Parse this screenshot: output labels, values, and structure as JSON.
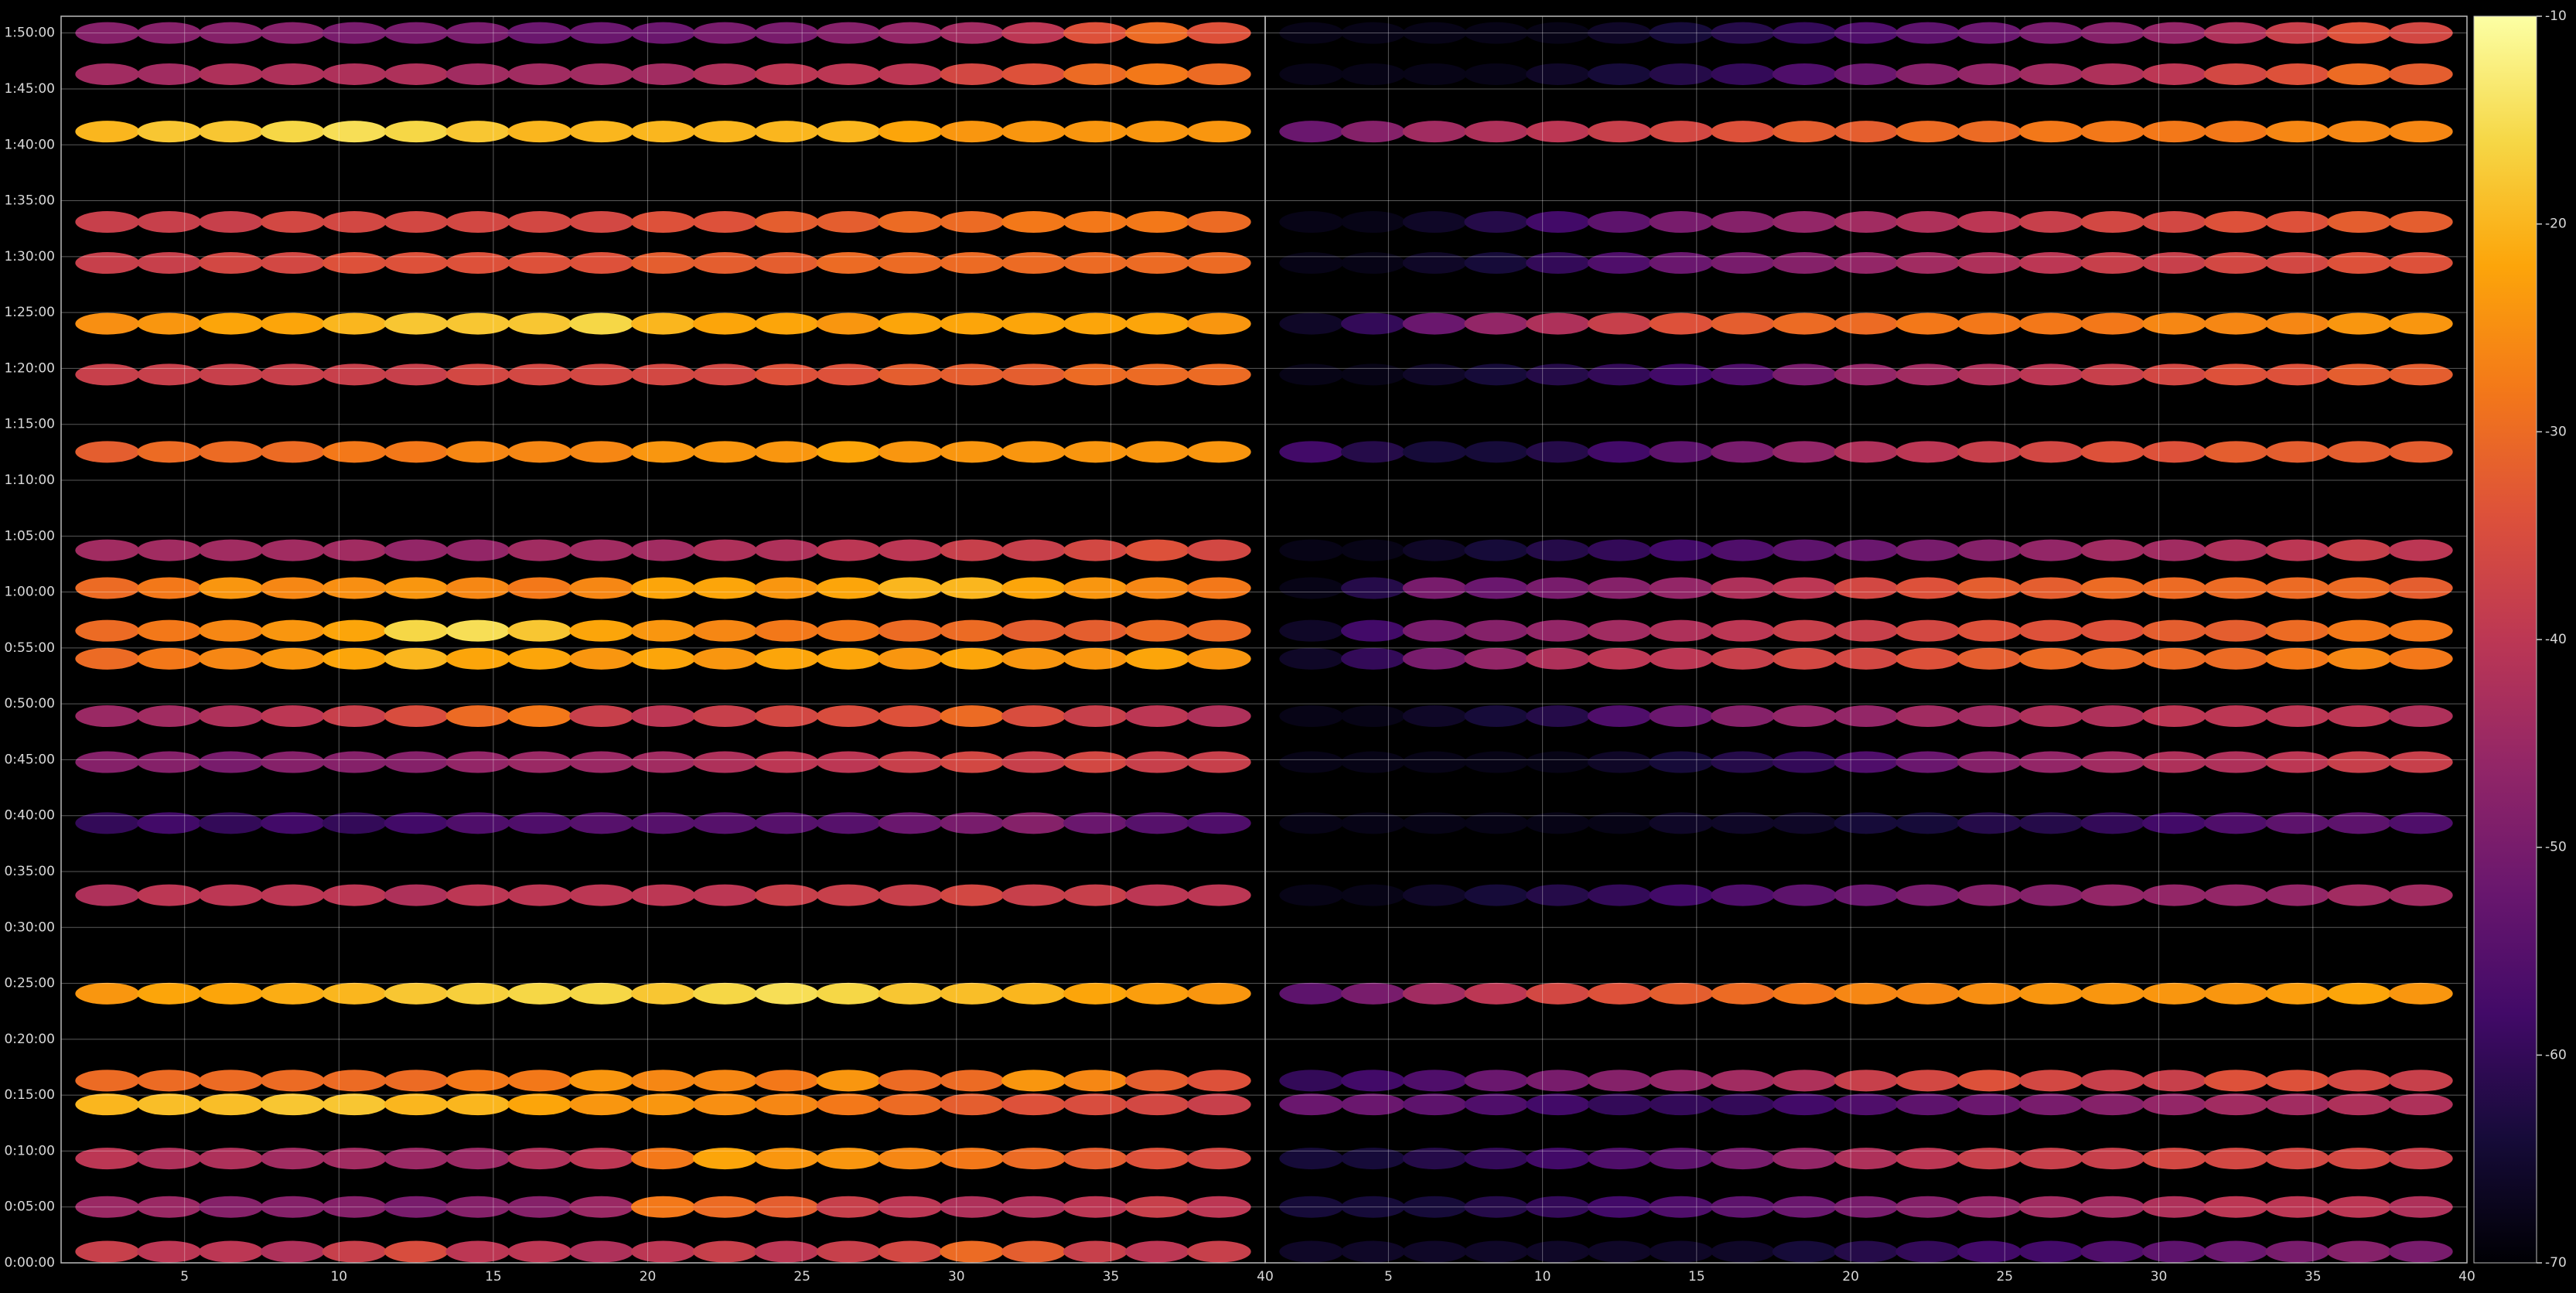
{
  "chart_data": [
    {
      "type": "heatmap",
      "xlim": [
        1,
        40
      ],
      "xticks": [
        5,
        10,
        15,
        20,
        25,
        30,
        35,
        40
      ],
      "ylim": [
        0,
        6690
      ],
      "yticks": [
        {
          "value": 0,
          "label": "0:00:00"
        },
        {
          "value": 300,
          "label": "0:05:00"
        },
        {
          "value": 600,
          "label": "0:10:00"
        },
        {
          "value": 900,
          "label": "0:15:00"
        },
        {
          "value": 1200,
          "label": "0:20:00"
        },
        {
          "value": 1500,
          "label": "0:25:00"
        },
        {
          "value": 1800,
          "label": "0:30:00"
        },
        {
          "value": 2100,
          "label": "0:35:00"
        },
        {
          "value": 2400,
          "label": "0:40:00"
        },
        {
          "value": 2700,
          "label": "0:45:00"
        },
        {
          "value": 3000,
          "label": "0:50:00"
        },
        {
          "value": 3300,
          "label": "0:55:00"
        },
        {
          "value": 3600,
          "label": "1:00:00"
        },
        {
          "value": 3900,
          "label": "1:05:00"
        },
        {
          "value": 4200,
          "label": "1:10:00"
        },
        {
          "value": 4500,
          "label": "1:15:00"
        },
        {
          "value": 4800,
          "label": "1:20:00"
        },
        {
          "value": 5100,
          "label": "1:25:00"
        },
        {
          "value": 5400,
          "label": "1:30:00"
        },
        {
          "value": 5700,
          "label": "1:35:00"
        },
        {
          "value": 6000,
          "label": "1:40:00"
        },
        {
          "value": 6300,
          "label": "1:45:00"
        },
        {
          "value": 6600,
          "label": "1:50:00"
        }
      ],
      "grid": true,
      "x": [
        2.5,
        4.5,
        6.5,
        8.5,
        10.5,
        12.5,
        14.5,
        16.5,
        18.5,
        20.5,
        22.5,
        24.5,
        26.5,
        28.5,
        30.5,
        32.5,
        34.5,
        36.5,
        38.5
      ],
      "y": [
        60,
        300,
        560,
        850,
        978,
        1445,
        1973,
        2360,
        2687,
        2934,
        3242,
        3392,
        3621,
        3824,
        4352,
        4767,
        5040,
        5366,
        5586,
        6071,
        6379,
        6600
      ],
      "z": [
        [
          -38,
          -40,
          -40,
          -42,
          -38,
          -35,
          -40,
          -40,
          -42,
          -40,
          -38,
          -40,
          -38,
          -36,
          -30,
          -32,
          -38,
          -40,
          -38
        ],
        [
          -45,
          -45,
          -48,
          -48,
          -48,
          -50,
          -48,
          -48,
          -45,
          -28,
          -30,
          -32,
          -38,
          -40,
          -42,
          -42,
          -40,
          -38,
          -40
        ],
        [
          -40,
          -42,
          -42,
          -44,
          -44,
          -45,
          -45,
          -42,
          -40,
          -28,
          -22,
          -24,
          -24,
          -26,
          -28,
          -30,
          -32,
          -34,
          -36
        ],
        [
          -20,
          -19,
          -19,
          -18,
          -18,
          -20,
          -20,
          -22,
          -24,
          -24,
          -25,
          -26,
          -28,
          -30,
          -32,
          -34,
          -35,
          -36,
          -38
        ],
        [
          -30,
          -30,
          -30,
          -30,
          -30,
          -30,
          -28,
          -28,
          -24,
          -26,
          -26,
          -28,
          -24,
          -30,
          -30,
          -24,
          -26,
          -32,
          -34
        ],
        [
          -24,
          -22,
          -22,
          -21,
          -20,
          -18,
          -17,
          -16,
          -16,
          -18,
          -16,
          -15,
          -16,
          -18,
          -19,
          -20,
          -22,
          -23,
          -24
        ],
        [
          -42,
          -40,
          -40,
          -40,
          -40,
          -42,
          -40,
          -40,
          -40,
          -40,
          -40,
          -38,
          -38,
          -38,
          -36,
          -38,
          -38,
          -40,
          -40
        ],
        [
          -60,
          -58,
          -60,
          -58,
          -60,
          -58,
          -56,
          -56,
          -55,
          -55,
          -55,
          -55,
          -55,
          -52,
          -50,
          -48,
          -52,
          -55,
          -56
        ],
        [
          -48,
          -48,
          -50,
          -48,
          -48,
          -48,
          -46,
          -45,
          -45,
          -44,
          -42,
          -40,
          -40,
          -38,
          -36,
          -38,
          -36,
          -38,
          -38
        ],
        [
          -45,
          -44,
          -42,
          -40,
          -38,
          -35,
          -30,
          -28,
          -38,
          -40,
          -38,
          -36,
          -35,
          -34,
          -30,
          -35,
          -38,
          -40,
          -42
        ],
        [
          -30,
          -28,
          -26,
          -24,
          -22,
          -20,
          -22,
          -22,
          -24,
          -22,
          -24,
          -22,
          -22,
          -24,
          -22,
          -24,
          -24,
          -22,
          -24
        ],
        [
          -30,
          -28,
          -26,
          -24,
          -22,
          -16,
          -15,
          -18,
          -22,
          -24,
          -26,
          -28,
          -28,
          -30,
          -30,
          -32,
          -32,
          -30,
          -30
        ],
        [
          -30,
          -28,
          -24,
          -26,
          -25,
          -24,
          -26,
          -28,
          -26,
          -22,
          -22,
          -24,
          -22,
          -20,
          -20,
          -22,
          -24,
          -26,
          -28
        ],
        [
          -44,
          -44,
          -44,
          -44,
          -44,
          -46,
          -46,
          -44,
          -44,
          -44,
          -42,
          -42,
          -40,
          -40,
          -38,
          -38,
          -36,
          -34,
          -36
        ],
        [
          -32,
          -30,
          -30,
          -30,
          -28,
          -28,
          -26,
          -26,
          -26,
          -24,
          -24,
          -24,
          -22,
          -24,
          -24,
          -24,
          -24,
          -24,
          -24
        ],
        [
          -38,
          -38,
          -38,
          -38,
          -38,
          -38,
          -36,
          -36,
          -36,
          -36,
          -36,
          -34,
          -34,
          -32,
          -32,
          -32,
          -30,
          -30,
          -30
        ],
        [
          -25,
          -24,
          -22,
          -22,
          -20,
          -18,
          -18,
          -18,
          -16,
          -20,
          -22,
          -22,
          -24,
          -22,
          -22,
          -22,
          -22,
          -22,
          -24
        ],
        [
          -38,
          -38,
          -36,
          -36,
          -34,
          -34,
          -34,
          -34,
          -34,
          -32,
          -32,
          -32,
          -30,
          -30,
          -30,
          -30,
          -30,
          -30,
          -30
        ],
        [
          -38,
          -38,
          -38,
          -36,
          -36,
          -36,
          -36,
          -36,
          -36,
          -34,
          -34,
          -32,
          -32,
          -30,
          -30,
          -28,
          -28,
          -28,
          -30
        ],
        [
          -20,
          -18,
          -18,
          -16,
          -15,
          -16,
          -18,
          -20,
          -20,
          -20,
          -20,
          -20,
          -20,
          -22,
          -24,
          -24,
          -24,
          -24,
          -24
        ],
        [
          -44,
          -44,
          -42,
          -42,
          -42,
          -42,
          -44,
          -44,
          -44,
          -44,
          -42,
          -40,
          -40,
          -40,
          -36,
          -34,
          -30,
          -28,
          -30
        ],
        [
          -48,
          -48,
          -48,
          -48,
          -50,
          -50,
          -50,
          -52,
          -52,
          -52,
          -50,
          -50,
          -48,
          -46,
          -44,
          -40,
          -34,
          -30,
          -34
        ]
      ]
    },
    {
      "type": "heatmap",
      "xlim": [
        1,
        40
      ],
      "xticks": [
        5,
        10,
        15,
        20,
        25,
        30,
        35,
        40
      ],
      "ylim": [
        0,
        6690
      ],
      "yticks": [
        0,
        300,
        600,
        900,
        1200,
        1500,
        1800,
        2100,
        2400,
        2700,
        3000,
        3300,
        3600,
        3900,
        4200,
        4500,
        4800,
        5100,
        5400,
        5700,
        6000,
        6300,
        6600
      ],
      "grid": true,
      "x": [
        2.5,
        4.5,
        6.5,
        8.5,
        10.5,
        12.5,
        14.5,
        16.5,
        18.5,
        20.5,
        22.5,
        24.5,
        26.5,
        28.5,
        30.5,
        32.5,
        34.5,
        36.5,
        38.5
      ],
      "y": [
        60,
        300,
        560,
        850,
        978,
        1445,
        1973,
        2360,
        2687,
        2934,
        3242,
        3392,
        3621,
        3824,
        4352,
        4767,
        5040,
        5366,
        5586,
        6071,
        6379,
        6600
      ],
      "z": [
        [
          -66,
          -66,
          -66,
          -66,
          -66,
          -66,
          -66,
          -66,
          -64,
          -62,
          -60,
          -58,
          -58,
          -56,
          -54,
          -52,
          -50,
          -48,
          -50
        ],
        [
          -64,
          -64,
          -64,
          -62,
          -60,
          -58,
          -56,
          -54,
          -52,
          -50,
          -48,
          -46,
          -44,
          -44,
          -42,
          -40,
          -40,
          -40,
          -42
        ],
        [
          -64,
          -64,
          -62,
          -60,
          -58,
          -56,
          -54,
          -50,
          -46,
          -42,
          -40,
          -38,
          -38,
          -38,
          -36,
          -36,
          -36,
          -36,
          -38
        ],
        [
          -52,
          -52,
          -54,
          -56,
          -58,
          -60,
          -60,
          -60,
          -58,
          -56,
          -54,
          -52,
          -50,
          -48,
          -46,
          -44,
          -44,
          -42,
          -42
        ],
        [
          -60,
          -58,
          -56,
          -52,
          -50,
          -48,
          -46,
          -44,
          -42,
          -38,
          -36,
          -34,
          -36,
          -38,
          -38,
          -34,
          -34,
          -36,
          -38
        ],
        [
          -54,
          -50,
          -44,
          -40,
          -36,
          -34,
          -32,
          -30,
          -28,
          -26,
          -26,
          -25,
          -24,
          -24,
          -24,
          -24,
          -23,
          -22,
          -24
        ],
        [
          -68,
          -68,
          -66,
          -64,
          -62,
          -60,
          -58,
          -56,
          -54,
          -52,
          -50,
          -48,
          -48,
          -46,
          -46,
          -46,
          -46,
          -44,
          -44
        ],
        [
          -68,
          -68,
          -68,
          -68,
          -68,
          -68,
          -66,
          -66,
          -66,
          -64,
          -64,
          -62,
          -62,
          -60,
          -58,
          -56,
          -54,
          -54,
          -56
        ],
        [
          -68,
          -68,
          -68,
          -68,
          -68,
          -66,
          -64,
          -62,
          -60,
          -56,
          -52,
          -48,
          -46,
          -44,
          -42,
          -42,
          -40,
          -38,
          -38
        ],
        [
          -68,
          -68,
          -66,
          -64,
          -62,
          -56,
          -52,
          -48,
          -46,
          -46,
          -44,
          -44,
          -42,
          -42,
          -40,
          -40,
          -40,
          -40,
          -42
        ],
        [
          -66,
          -60,
          -50,
          -46,
          -42,
          -40,
          -40,
          -38,
          -36,
          -36,
          -34,
          -32,
          -30,
          -30,
          -30,
          -30,
          -28,
          -26,
          -28
        ],
        [
          -66,
          -58,
          -50,
          -48,
          -46,
          -44,
          -42,
          -40,
          -38,
          -38,
          -36,
          -34,
          -34,
          -34,
          -32,
          -32,
          -30,
          -28,
          -28
        ],
        [
          -68,
          -62,
          -50,
          -52,
          -50,
          -48,
          -46,
          -42,
          -40,
          -36,
          -34,
          -32,
          -32,
          -30,
          -30,
          -30,
          -30,
          -30,
          -32
        ],
        [
          -68,
          -68,
          -66,
          -64,
          -62,
          -60,
          -58,
          -56,
          -54,
          -52,
          -50,
          -48,
          -46,
          -44,
          -44,
          -42,
          -40,
          -38,
          -40
        ],
        [
          -58,
          -62,
          -64,
          -64,
          -62,
          -58,
          -54,
          -50,
          -46,
          -42,
          -40,
          -38,
          -36,
          -34,
          -34,
          -32,
          -32,
          -32,
          -32
        ],
        [
          -68,
          -68,
          -66,
          -64,
          -62,
          -60,
          -58,
          -56,
          -50,
          -46,
          -44,
          -42,
          -40,
          -38,
          -36,
          -34,
          -34,
          -32,
          -32
        ],
        [
          -66,
          -60,
          -52,
          -46,
          -42,
          -38,
          -34,
          -32,
          -30,
          -30,
          -28,
          -28,
          -28,
          -28,
          -26,
          -26,
          -26,
          -24,
          -24
        ],
        [
          -68,
          -68,
          -66,
          -64,
          -60,
          -56,
          -52,
          -50,
          -48,
          -46,
          -44,
          -42,
          -40,
          -38,
          -38,
          -36,
          -36,
          -34,
          -34
        ],
        [
          -68,
          -68,
          -66,
          -62,
          -58,
          -54,
          -50,
          -48,
          -46,
          -44,
          -42,
          -40,
          -38,
          -36,
          -36,
          -34,
          -34,
          -32,
          -32
        ],
        [
          -52,
          -48,
          -44,
          -42,
          -40,
          -38,
          -36,
          -34,
          -32,
          -32,
          -30,
          -30,
          -28,
          -28,
          -28,
          -28,
          -26,
          -26,
          -26
        ],
        [
          -68,
          -68,
          -68,
          -68,
          -66,
          -64,
          -62,
          -60,
          -56,
          -52,
          -48,
          -46,
          -44,
          -42,
          -40,
          -36,
          -34,
          -30,
          -32
        ],
        [
          -68,
          -68,
          -68,
          -68,
          -68,
          -66,
          -64,
          -62,
          -60,
          -56,
          -54,
          -52,
          -50,
          -48,
          -46,
          -42,
          -38,
          -34,
          -36
        ]
      ]
    }
  ],
  "colorbar": {
    "colormap": "inferno",
    "zlim": [
      -70,
      -10
    ],
    "ticks": [
      -70,
      -60,
      -50,
      -40,
      -30,
      -20,
      -10
    ]
  }
}
